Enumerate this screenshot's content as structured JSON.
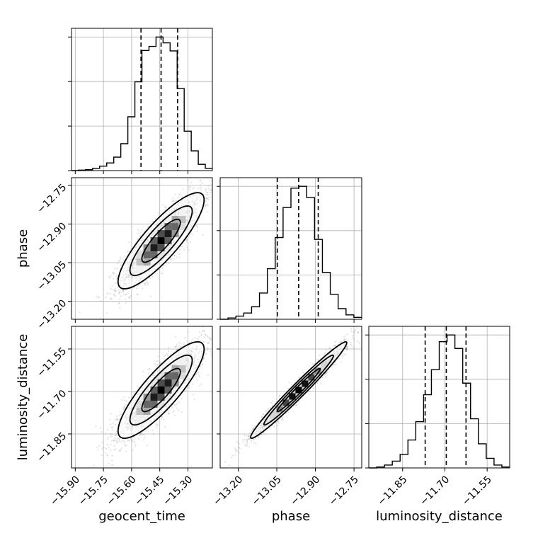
{
  "chart_data": {
    "type": "corner",
    "parameters": [
      "geocent_time",
      "phase",
      "luminosity_distance"
    ],
    "axis_labels": {
      "x": [
        "geocent_time",
        "phase",
        "luminosity_distance"
      ],
      "y": [
        "phase",
        "luminosity_distance"
      ]
    },
    "ranges": {
      "geocent_time": [
        -15.92,
        -15.17
      ],
      "phase": [
        -13.27,
        -12.72
      ],
      "luminosity_distance": [
        -11.97,
        -11.47
      ]
    },
    "ticks": {
      "geocent_time": [
        -15.9,
        -15.75,
        -15.6,
        -15.45,
        -15.3
      ],
      "phase": [
        -13.2,
        -13.05,
        -12.9,
        -12.75
      ],
      "luminosity_distance": [
        -11.85,
        -11.7,
        -11.55
      ]
    },
    "tick_labels": {
      "geocent_time": [
        "−15.90",
        "−15.75",
        "−15.60",
        "−15.45",
        "−15.30"
      ],
      "phase": [
        "−13.20",
        "−13.05",
        "−12.90",
        "−12.75"
      ],
      "luminosity_distance": [
        "−11.85",
        "−11.70",
        "−11.55"
      ]
    },
    "quantiles": {
      "geocent_time": [
        -15.55,
        -15.443,
        -15.355
      ],
      "phase": [
        -13.048,
        -12.965,
        -12.889
      ],
      "luminosity_distance": [
        -11.77,
        -11.695,
        -11.625
      ]
    },
    "histograms": {
      "geocent_time": {
        "edges": [
          -15.92,
          -15.17
        ],
        "counts": [
          0,
          1,
          2,
          5,
          10,
          17,
          30,
          60,
          120,
          198,
          268,
          277,
          298,
          285,
          267,
          183,
          88,
          44,
          14,
          5
        ]
      },
      "phase": {
        "edges": [
          -13.27,
          -12.72
        ],
        "counts": [
          0,
          2,
          5,
          10,
          20,
          42,
          81,
          131,
          179,
          210,
          213,
          195,
          128,
          75,
          40,
          17,
          7,
          3
        ]
      },
      "luminosity_distance": {
        "edges": [
          -11.97,
          -11.47
        ],
        "counts": [
          0,
          1,
          3,
          7,
          14,
          29,
          48,
          76,
          102,
          131,
          138,
          124,
          88,
          51,
          25,
          10,
          3,
          1
        ]
      }
    },
    "pairs": [
      {
        "x": "geocent_time",
        "y": "phase",
        "correlation": 0.85
      },
      {
        "x": "geocent_time",
        "y": "luminosity_distance",
        "correlation": 0.85
      },
      {
        "x": "phase",
        "y": "luminosity_distance",
        "correlation": 0.98
      }
    ],
    "grid": true,
    "colors": {
      "line": "#000000",
      "quantile": "#000000",
      "grid": "#b0b0b0",
      "points": "#808080"
    }
  }
}
